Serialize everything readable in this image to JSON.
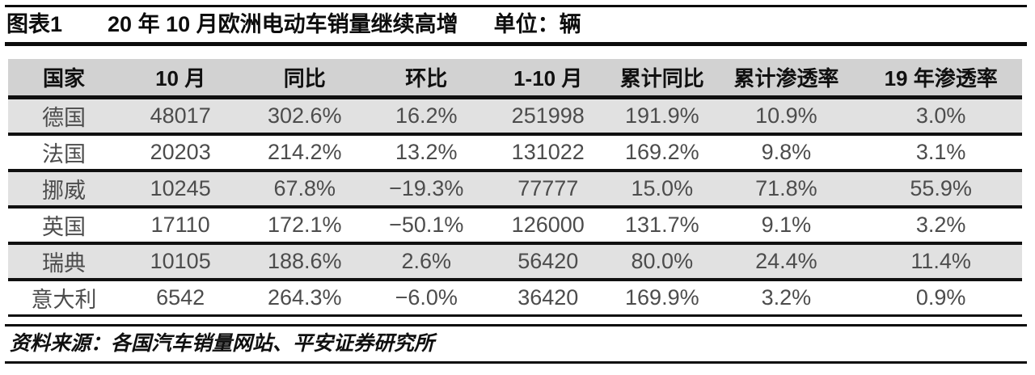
{
  "figure": {
    "label": "图表1",
    "title": "20 年 10 月欧洲电动车销量继续高增",
    "unit": "单位：辆"
  },
  "chart_data": {
    "type": "table",
    "title": "图表1 20 年 10 月欧洲电动车销量继续高增 单位：辆",
    "columns": [
      "国家",
      "10 月",
      "同比",
      "环比",
      "1-10 月",
      "累计同比",
      "累计渗透率",
      "19 年渗透率"
    ],
    "rows": [
      [
        "德国",
        "48017",
        "302.6%",
        "16.2%",
        "251998",
        "191.9%",
        "10.9%",
        "3.0%"
      ],
      [
        "法国",
        "20203",
        "214.2%",
        "13.2%",
        "131022",
        "169.2%",
        "9.8%",
        "3.1%"
      ],
      [
        "挪威",
        "10245",
        "67.8%",
        "−19.3%",
        "77777",
        "15.0%",
        "71.8%",
        "55.9%"
      ],
      [
        "英国",
        "17110",
        "172.1%",
        "−50.1%",
        "126000",
        "131.7%",
        "9.1%",
        "3.2%"
      ],
      [
        "瑞典",
        "10105",
        "188.6%",
        "2.6%",
        "56420",
        "80.0%",
        "24.4%",
        "11.4%"
      ],
      [
        "意大利",
        "6542",
        "264.3%",
        "−6.0%",
        "36420",
        "169.9%",
        "3.2%",
        "0.9%"
      ]
    ],
    "source": "资料来源：各国汽车销量网站、平安证券研究所"
  },
  "footer": {
    "source": "资料来源：各国汽车销量网站、平安证券研究所"
  },
  "colors": {
    "header_bg": "#d2d2d2",
    "row_alt_bg": "#e1e1e1",
    "row_bg": "#ffffff",
    "rule_line": "#101010",
    "header_text": "#101010",
    "cell_text": "#4c4c4c"
  }
}
